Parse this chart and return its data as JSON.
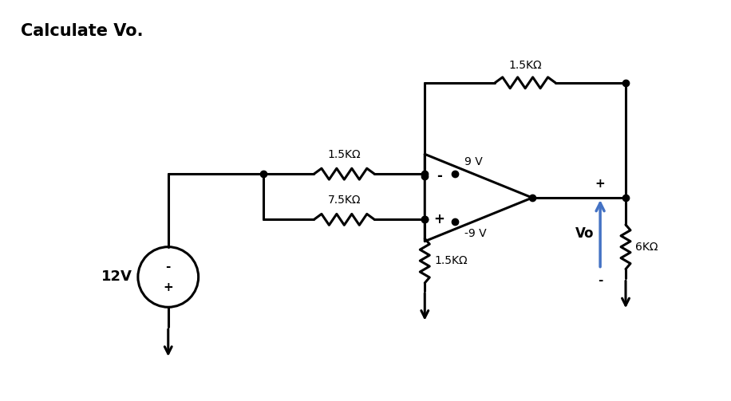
{
  "title": "Calculate Vo.",
  "title_fontsize": 15,
  "title_fontweight": "bold",
  "background_color": "#ffffff",
  "line_color": "#000000",
  "arrow_color": "#4472c4",
  "fig_width": 9.16,
  "fig_height": 5.03,
  "labels": {
    "R1": "1.5KΩ",
    "R2": "7.5KΩ",
    "Rf": "1.5KΩ",
    "Rload": "6KΩ",
    "Rgnd": "1.5KΩ",
    "V_supply_pos": "9 V",
    "V_supply_neg": "-9 V",
    "Vin": "12V",
    "Vo": "Vo",
    "plus": "+",
    "minus": "-"
  }
}
